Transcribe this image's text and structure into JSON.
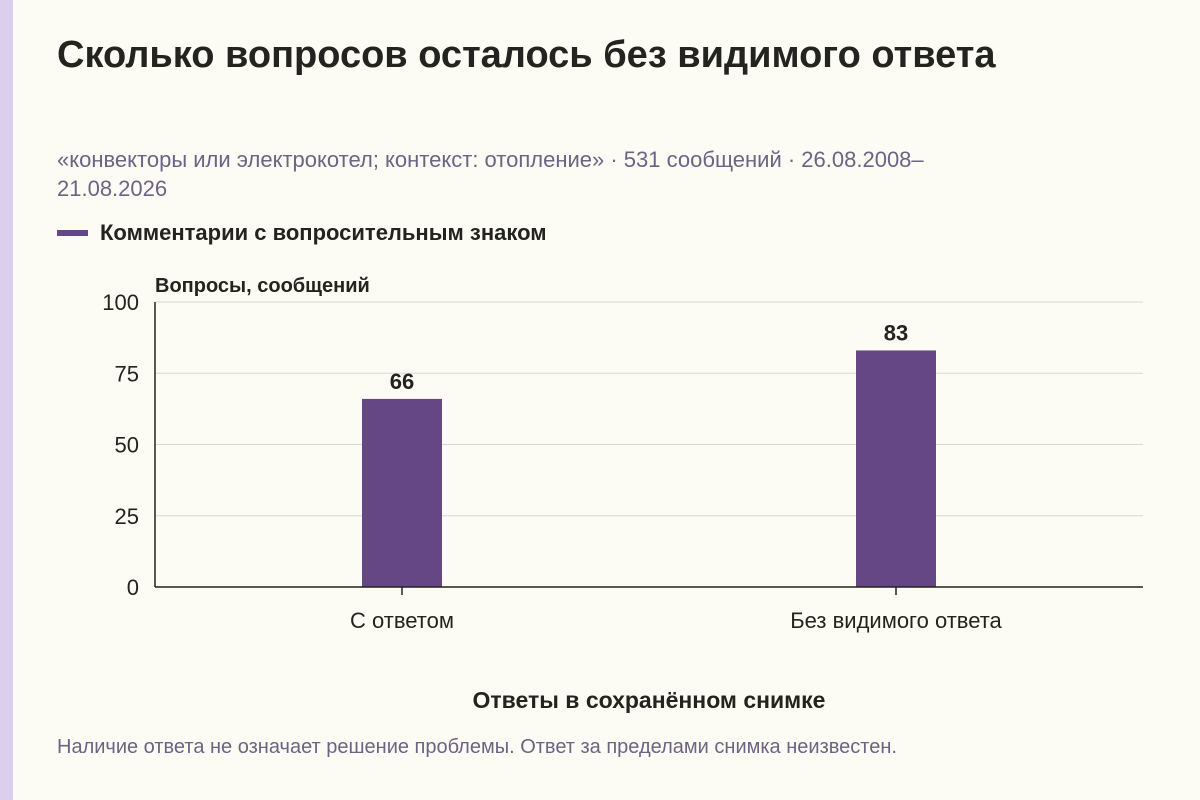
{
  "title": "Сколько вопросов осталось без видимого ответа",
  "subtitle": "«конвекторы или электрокотел; контекст: отопление» · 531 сообщений · 26.08.2008–21.08.2026",
  "note": "Наличие ответа не означает решение проблемы. Ответ за пределами снимка неизвестен.",
  "colors": {
    "bar": "#654786",
    "grid": "#d9d7cf",
    "axis": "#23231f",
    "text": "#23231f",
    "muted": "#6d6384"
  },
  "chart_data": {
    "type": "bar",
    "categories": [
      "С ответом",
      "Без видимого ответа"
    ],
    "series": [
      {
        "name": "Комментарии с вопросительным знаком",
        "values": [
          66,
          83
        ]
      }
    ],
    "ylabel": "Вопросы, сообщений",
    "xlabel": "Ответы в сохранённом снимке",
    "ylim": [
      0,
      100
    ],
    "yticks": [
      0,
      25,
      50,
      75,
      100
    ],
    "grid": true,
    "legend": "top-left"
  }
}
